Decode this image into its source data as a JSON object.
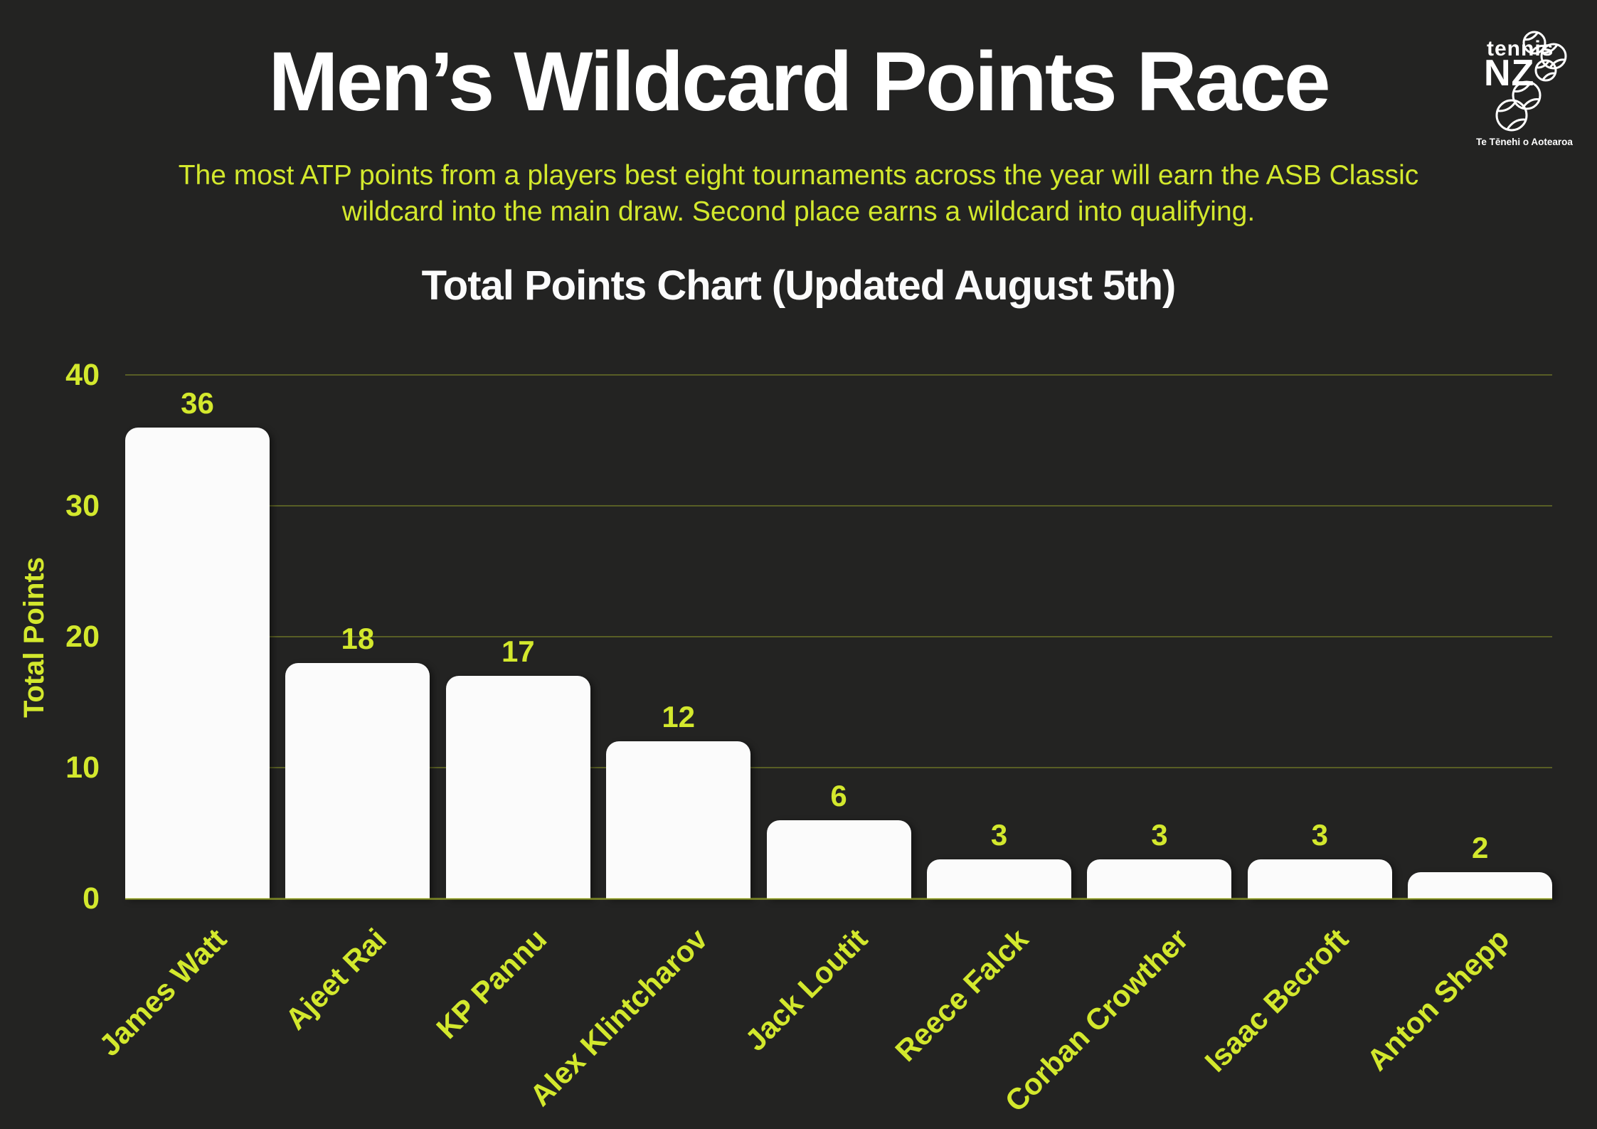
{
  "page": {
    "title": "Men’s Wildcard Points Race",
    "subtitle_line1": "The most ATP points from a players best eight tournaments across the year will earn the ASB Classic",
    "subtitle_line2": "wildcard into the main draw. Second place earns a wildcard into qualifying."
  },
  "logo": {
    "brand_top": "tennis",
    "brand_main": "NZ",
    "tagline": "Te Tēnehi o Aotearoa"
  },
  "chart_data": {
    "type": "bar",
    "title": "Total Points Chart (Updated August 5th)",
    "ylabel": "Total Points",
    "xlabel": "",
    "categories": [
      "James Watt",
      "Ajeet Rai",
      "KP Pannu",
      "Alex Klintcharov",
      "Jack Loutit",
      "Reece Falck",
      "Corban Crowther",
      "Isaac Becroft",
      "Anton Shepp"
    ],
    "values": [
      36,
      18,
      17,
      12,
      6,
      3,
      3,
      3,
      2
    ],
    "ylim": [
      0,
      40
    ],
    "yticks": [
      0,
      10,
      20,
      30,
      40
    ],
    "grid": "horizontal",
    "legend_position": "none",
    "colors": {
      "background": "#232322",
      "accent": "#d3e82d",
      "bar": "#fbfbfb",
      "gridline_rgba": "rgba(211,232,45,0.30)"
    }
  }
}
